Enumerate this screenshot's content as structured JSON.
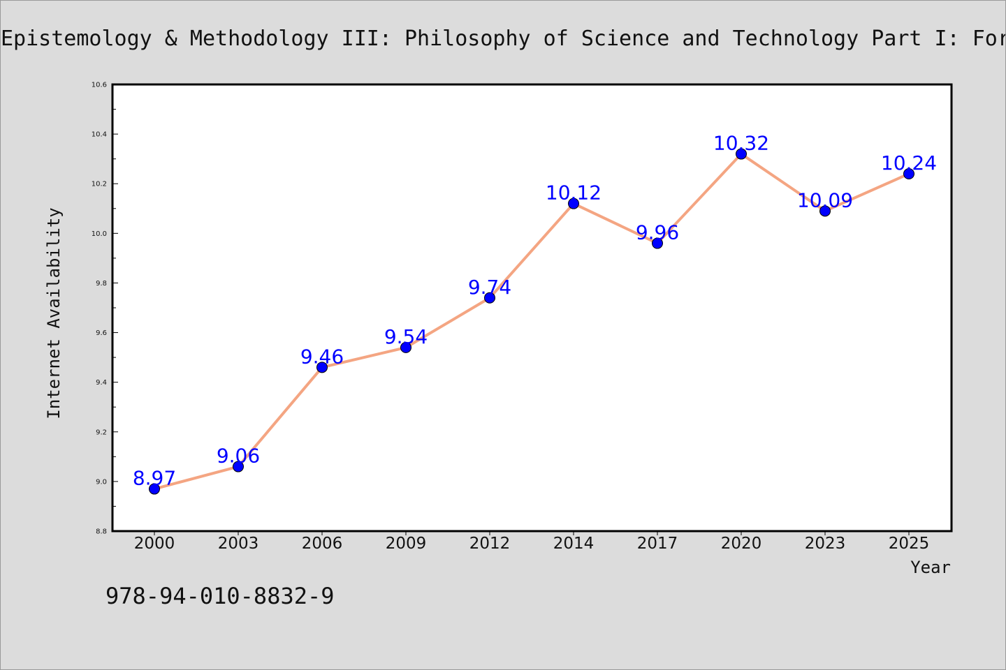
{
  "chart_data": {
    "type": "line",
    "title": "Epistemology & Methodology III: Philosophy of Science and Technology Part I: For",
    "xlabel": "Year",
    "ylabel": "Internet Availability",
    "ylim": [
      8.8,
      10.6
    ],
    "y_ticks": [
      "8.8",
      "9.0",
      "9.2",
      "9.4",
      "9.6",
      "9.8",
      "10.0",
      "10.2",
      "10.4",
      "10.6"
    ],
    "categories": [
      "2000",
      "2003",
      "2006",
      "2009",
      "2012",
      "2014",
      "2017",
      "2020",
      "2023",
      "2025"
    ],
    "series": [
      {
        "values": [
          8.97,
          9.06,
          9.46,
          9.54,
          9.74,
          10.12,
          9.96,
          10.32,
          10.09,
          10.24
        ],
        "labels": [
          "8.97",
          "9.06",
          "9.46",
          "9.54",
          "9.74",
          "10.12",
          "9.96",
          "10.32",
          "10.09",
          "10.24"
        ],
        "line_color": "#f4a582",
        "marker_color": "#0000ff"
      }
    ],
    "grid": false,
    "legend": "none"
  },
  "footer": {
    "isbn": "978-94-010-8832-9"
  }
}
